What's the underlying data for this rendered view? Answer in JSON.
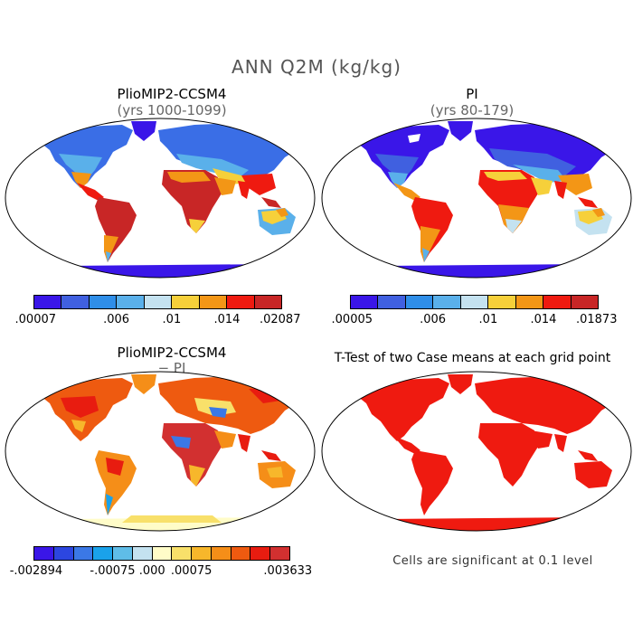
{
  "title": "ANN Q2M (kg/kg)",
  "panels": [
    {
      "title": "PlioMIP2-CCSM4",
      "subtitle": "(yrs 1000-1099)"
    },
    {
      "title": "PI",
      "subtitle": "(yrs 80-179)"
    },
    {
      "title": "PlioMIP2-CCSM4",
      "subtitle": "− PI"
    },
    {
      "title": "T-Test of two Case means at each grid point",
      "subtitle": ""
    }
  ],
  "colorbars": [
    {
      "colors": [
        "#3a16e8",
        "#4060e0",
        "#2f8ee8",
        "#5ab0ea",
        "#c4e2f0",
        "#f6d03a",
        "#f39616",
        "#ef1a10",
        "#c82626"
      ],
      "labels": [
        ".00007",
        ".006",
        ".01",
        ".014",
        ".02087"
      ],
      "label_positions": [
        0,
        0.333,
        0.556,
        0.778,
        1
      ]
    },
    {
      "colors": [
        "#3a16e8",
        "#4060e0",
        "#2f8ee8",
        "#5ab0ea",
        "#c4e2f0",
        "#f6d03a",
        "#f39616",
        "#ef1a10",
        "#c82626"
      ],
      "labels": [
        ".00005",
        ".006",
        ".01",
        ".014",
        ".01873"
      ],
      "label_positions": [
        0,
        0.333,
        0.556,
        0.778,
        1
      ]
    },
    {
      "colors": [
        "#3a16e8",
        "#2c46e0",
        "#3b78e6",
        "#1aa2ea",
        "#5fbde8",
        "#c4e2f0",
        "#fffcc8",
        "#f8e06a",
        "#f7b72b",
        "#f58e18",
        "#ee5a10",
        "#e81c10",
        "#d23030"
      ],
      "labels": [
        "-.002894",
        "-.00075",
        ".000",
        ".00075",
        ".003633"
      ],
      "label_positions": [
        0,
        0.308,
        0.462,
        0.615,
        1
      ]
    }
  ],
  "note": "Cells are significant at 0.1 level"
}
